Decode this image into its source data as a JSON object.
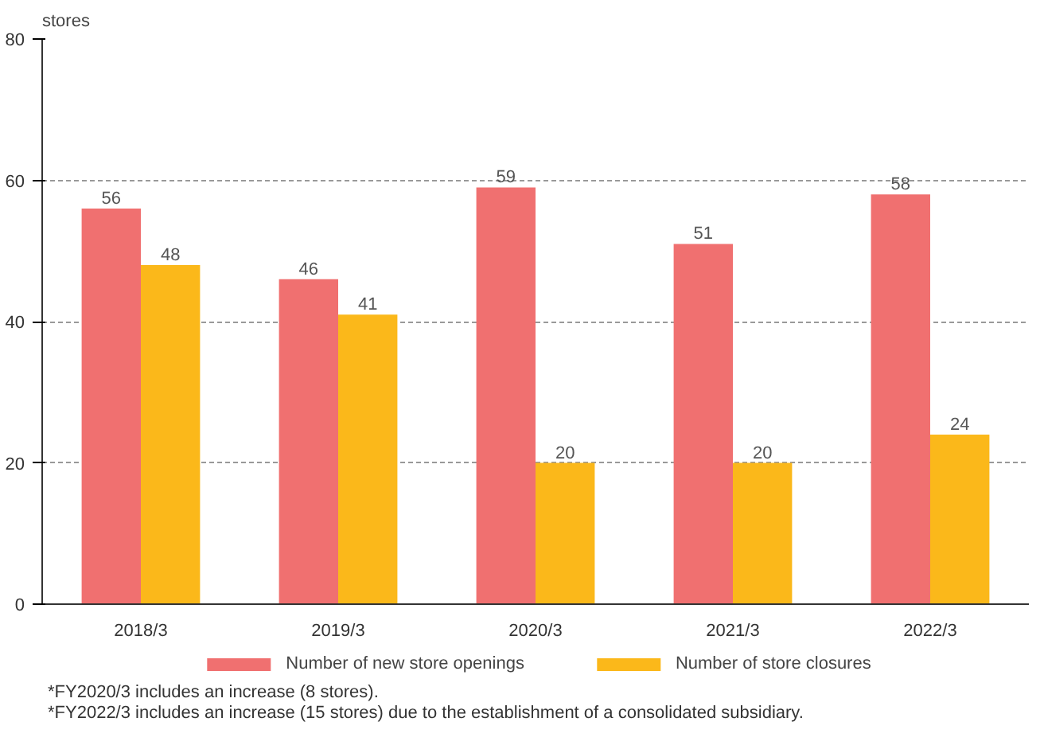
{
  "chart_data": {
    "type": "bar",
    "ylabel": "stores",
    "categories": [
      "2018/3",
      "2019/3",
      "2020/3",
      "2021/3",
      "2022/3"
    ],
    "series": [
      {
        "name": "Number of new store openings",
        "color": "#f07070",
        "values": [
          56,
          46,
          59,
          51,
          58
        ]
      },
      {
        "name": "Number of store closures",
        "color": "#fbb81a",
        "values": [
          48,
          41,
          20,
          20,
          24
        ]
      }
    ],
    "ylim": [
      0,
      80
    ],
    "yticks": [
      0,
      20,
      40,
      60,
      80
    ],
    "grid": "y",
    "legend": "bottom",
    "data_labels": true,
    "annotations": [
      "*FY2020/3 includes an increase (8 stores).",
      "*FY2022/3 includes an increase (15 stores) due to the establishment of a consolidated subsidiary."
    ]
  }
}
